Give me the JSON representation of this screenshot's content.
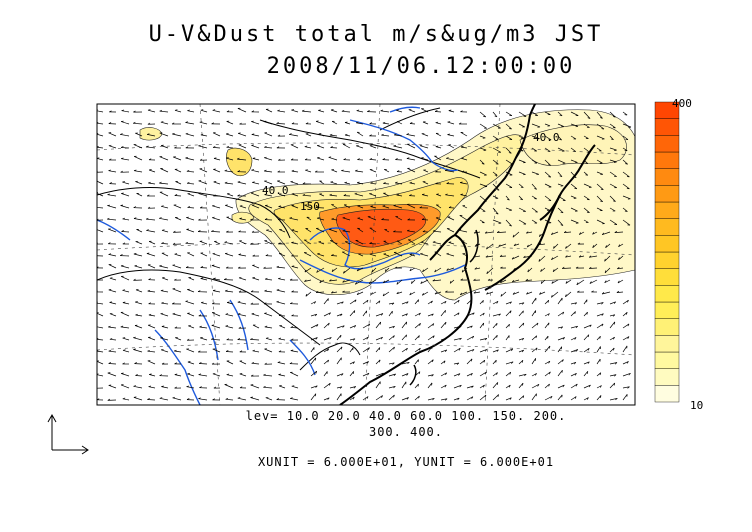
{
  "title": {
    "line1": "U-V&Dust total m/s&ug/m3 JST",
    "line2": "2008/11/06.12:00:00"
  },
  "contour_labels": [
    "40.0",
    "150",
    "40.0"
  ],
  "levels_caption": {
    "line1": "lev= 10.0 20.0 40.0 60.0 100. 150. 200.",
    "line2": "300. 400."
  },
  "unit_caption": "XUNIT = 6.000E+01, YUNIT = 6.000E+01",
  "colorbar": {
    "max_label": "400",
    "min_label": "10",
    "levels": [
      10,
      20,
      40,
      60,
      100,
      150,
      200,
      300,
      400
    ],
    "colors": [
      "#fffde0",
      "#fffbc0",
      "#fff9a0",
      "#fff59b",
      "#fff176",
      "#ffee58",
      "#ffe94a",
      "#ffde3a",
      "#ffd22e",
      "#ffc624",
      "#ffba1f",
      "#ffaa1a",
      "#ff9a14",
      "#ff8a10",
      "#ff780c",
      "#ff6608",
      "#ff5505",
      "#ff4602"
    ]
  },
  "colors": {
    "coast": "#000000",
    "river": "#1e5adc",
    "dust_low": "#fff6b0",
    "dust_mid": "#ffe45a",
    "dust_high": "#ff5a14"
  }
}
